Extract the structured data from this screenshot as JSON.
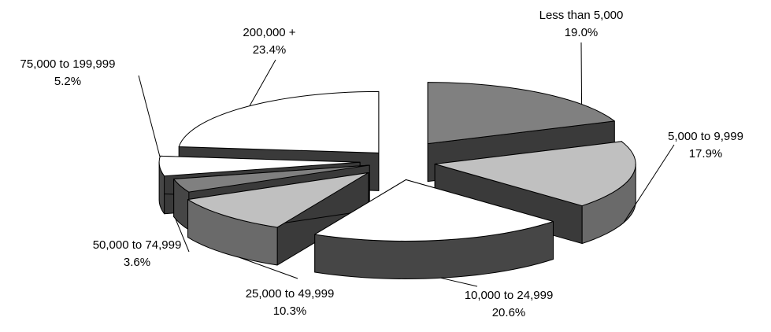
{
  "chart_data": {
    "type": "pie",
    "title": "",
    "style": "exploded-3d",
    "categories": [
      "Less than 5,000",
      "5,000 to 9,999",
      "10,000 to 24,999",
      "25,000 to 49,999",
      "50,000 to 74,999",
      "75,000 to 199,999",
      "200,000 +"
    ],
    "values": [
      19.0,
      17.9,
      20.6,
      10.3,
      3.6,
      5.2,
      23.4
    ],
    "value_labels": [
      "19.0%",
      "17.9%",
      "20.6%",
      "10.3%",
      "3.6%",
      "5.2%",
      "23.4%"
    ],
    "colors": [
      "#808080",
      "#c0c0c0",
      "#ffffff",
      "#c0c0c0",
      "#808080",
      "#ffffff",
      "#ffffff"
    ],
    "legend": "none"
  }
}
